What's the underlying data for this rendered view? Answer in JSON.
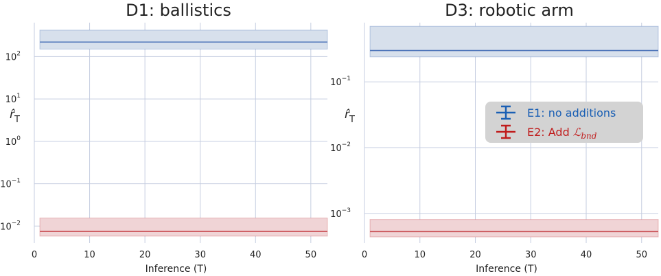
{
  "chart_data": [
    {
      "type": "line",
      "title": "D1: ballistics",
      "xlabel": "Inference (T)",
      "ylabel": "r̂",
      "ylabel_sub": "T",
      "yscale": "log",
      "xlim": [
        0,
        53
      ],
      "ylim_exp": [
        -2.4,
        2.8
      ],
      "xticks": [
        0,
        10,
        20,
        30,
        40,
        50
      ],
      "yticks_exp": [
        -2,
        -1,
        0,
        1,
        2
      ],
      "grid": true,
      "series": [
        {
          "name": "E1: no additions",
          "x": [
            1,
            53
          ],
          "y": [
            220,
            220
          ],
          "band_low": 150,
          "band_high": 420,
          "color": "#4a72b8"
        },
        {
          "name": "E2: Add L_bnd",
          "x": [
            1,
            53
          ],
          "y": [
            0.0075,
            0.0075
          ],
          "band_low": 0.0058,
          "band_high": 0.0155,
          "color": "#c84b50"
        }
      ]
    },
    {
      "type": "line",
      "title": "D3: robotic arm",
      "xlabel": "Inference (T)",
      "ylabel": "r̂",
      "ylabel_sub": "T",
      "yscale": "log",
      "xlim": [
        0,
        53
      ],
      "ylim_exp": [
        -3.45,
        -0.1
      ],
      "xticks": [
        0,
        10,
        20,
        30,
        40,
        50
      ],
      "yticks_exp": [
        -3,
        -2,
        -1
      ],
      "grid": true,
      "series": [
        {
          "name": "E1: no additions",
          "x": [
            1,
            53
          ],
          "y": [
            0.3,
            0.3
          ],
          "band_low": 0.24,
          "band_high": 0.7,
          "color": "#4a72b8"
        },
        {
          "name": "E2: Add L_bnd",
          "x": [
            1,
            53
          ],
          "y": [
            0.00053,
            0.00053
          ],
          "band_low": 0.00044,
          "band_high": 0.00081,
          "color": "#c84b50"
        }
      ]
    }
  ],
  "legend": {
    "location": "center-right",
    "entries": [
      {
        "label": "E1: no additions",
        "color": "#1a5fb4"
      },
      {
        "label": "E2: Add ",
        "math": "ℒ",
        "math_sub": "bnd",
        "color": "#c01c1c"
      }
    ]
  },
  "colors": {
    "grid": "#c5cde0",
    "axis": "#c5cde0",
    "blue_band": "#d7e0ec",
    "red_band": "#f0d4d6",
    "legend_bg": "#d3d3d3"
  }
}
